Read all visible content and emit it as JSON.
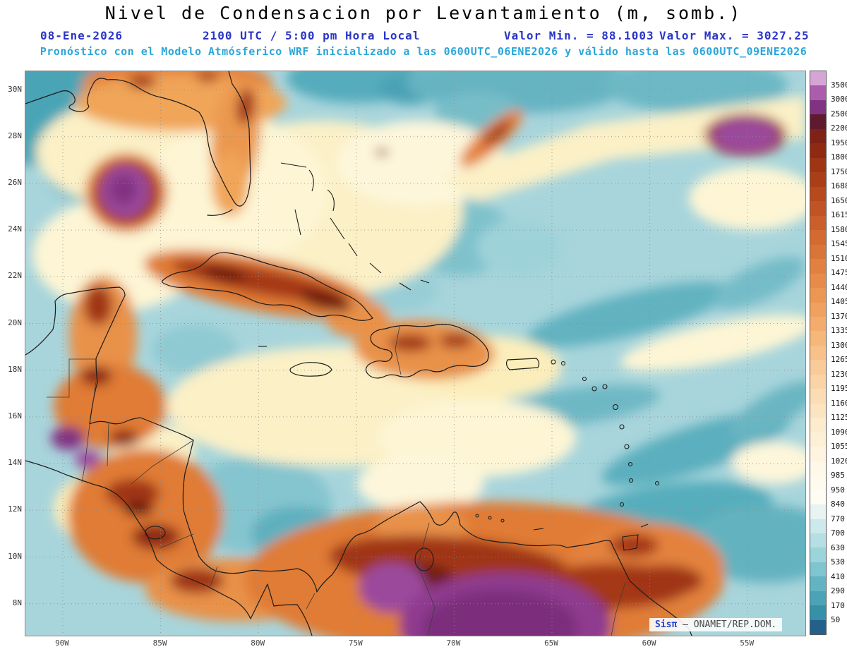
{
  "header": {
    "title": "Nivel de Condensacion por Levantamiento (m, somb.)",
    "date": "08-Ene-2026",
    "local_time": "2100 UTC / 5:00 pm Hora Local",
    "min_value": "Valor Min. = 88.1003",
    "max_value": "Valor Max. = 3027.25",
    "forecast": "Pronóstico con el Modelo Atmósferico WRF inicializado a las 0600UTC_06ENE2026 y válido hasta las  0600UTC_09ENE2026"
  },
  "axes": {
    "lat": [
      "30N",
      "28N",
      "26N",
      "24N",
      "22N",
      "20N",
      "18N",
      "16N",
      "14N",
      "12N",
      "10N",
      "8N"
    ],
    "lon": [
      "90W",
      "85W",
      "80W",
      "75W",
      "70W",
      "65W",
      "60W",
      "55W"
    ]
  },
  "colorbar": {
    "tick_labels": [
      "3500",
      "3000",
      "2500",
      "2200",
      "1950",
      "1800",
      "1750",
      "1688",
      "1650",
      "1615",
      "1580",
      "1545",
      "1510",
      "1475",
      "1440",
      "1405",
      "1370",
      "1335",
      "1300",
      "1265",
      "1230",
      "1195",
      "1160",
      "1125",
      "1090",
      "1055",
      "1020",
      "985",
      "950",
      "840",
      "770",
      "700",
      "630",
      "530",
      "410",
      "290",
      "170",
      "50"
    ],
    "colors": [
      "#d7a4d7",
      "#ab5cab",
      "#823282",
      "#5e1b30",
      "#7f2115",
      "#8f2a12",
      "#9e3513",
      "#aa3f17",
      "#b64a1d",
      "#c05424",
      "#c95f2b",
      "#d26a32",
      "#da7539",
      "#e18041",
      "#e78b4a",
      "#ec9654",
      "#f0a15f",
      "#f3ac6c",
      "#f6b77a",
      "#f8c189",
      "#f9cb98",
      "#fad4a6",
      "#fbdcb4",
      "#fce4c1",
      "#fdebcd",
      "#fdf0d7",
      "#fef4e0",
      "#fef8e8",
      "#fefaee",
      "#fefcf3",
      "#e8f4f2",
      "#cde9eb",
      "#b4dfe3",
      "#9bd4da",
      "#7fc5cf",
      "#63b4c2",
      "#4ba3b5",
      "#3690a7",
      "#24618a"
    ]
  },
  "watermark": {
    "brand": "Sisπ",
    "text": "– ONAMET/REP.DOM."
  },
  "chart_data": {
    "type": "heatmap",
    "title": "Nivel de Condensacion por Levantamiento (m, somb.)",
    "units": "m",
    "value_min": 88.1003,
    "value_max": 3027.25,
    "contour_levels": [
      50,
      170,
      290,
      410,
      530,
      630,
      700,
      770,
      840,
      950,
      985,
      1020,
      1055,
      1090,
      1125,
      1160,
      1195,
      1230,
      1265,
      1300,
      1335,
      1370,
      1405,
      1440,
      1475,
      1510,
      1545,
      1580,
      1615,
      1650,
      1688,
      1750,
      1800,
      1950,
      2200,
      2500,
      3000,
      3500
    ],
    "region": {
      "lat_range_n": [
        8,
        30
      ],
      "lon_range_w": [
        90,
        55
      ]
    },
    "model": "WRF",
    "init": "0600UTC_06ENE2026",
    "valid_until": "0600UTC_09ENE2026",
    "valid_at": "2100 UTC 08-Ene-2026 / 5:00 pm Hora Local"
  }
}
